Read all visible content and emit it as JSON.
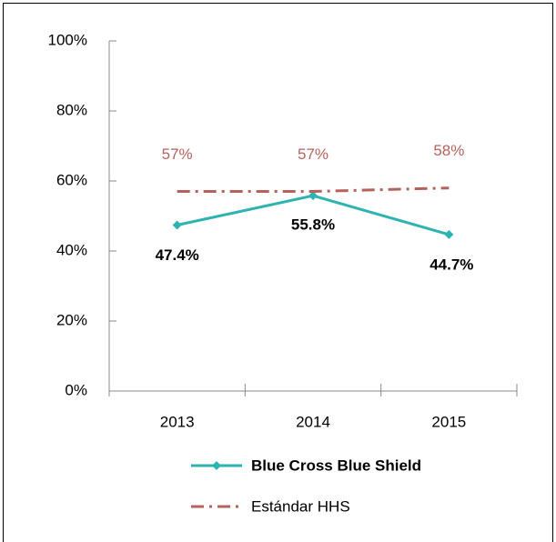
{
  "chart_data": {
    "type": "line",
    "categories": [
      "2013",
      "2014",
      "2015"
    ],
    "ylim": [
      0,
      100
    ],
    "yticks": [
      {
        "value": 0,
        "label": "0%"
      },
      {
        "value": 20,
        "label": "20%"
      },
      {
        "value": 40,
        "label": "40%"
      },
      {
        "value": 60,
        "label": "60%"
      },
      {
        "value": 80,
        "label": "80%"
      },
      {
        "value": 100,
        "label": "100%"
      }
    ],
    "legend": "bottom",
    "series": [
      {
        "name": "Blue Cross Blue Shield",
        "color": "#2fb3b1",
        "values": [
          47.4,
          55.8,
          44.7
        ],
        "value_labels": [
          "47.4%",
          "55.8%",
          "44.7%"
        ]
      },
      {
        "name": "Estándar HHS",
        "color": "#b5625c",
        "values": [
          57,
          57,
          58
        ],
        "value_labels": [
          "57%",
          "57%",
          "58%"
        ]
      }
    ]
  }
}
